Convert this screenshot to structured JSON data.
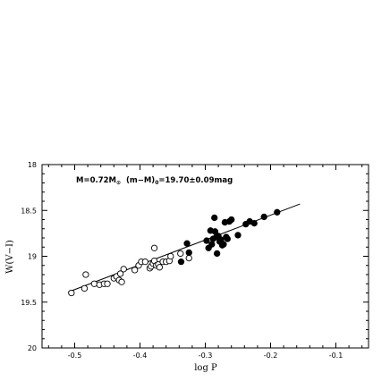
{
  "chart_data": {
    "type": "scatter",
    "xlabel": "log P",
    "ylabel": "W(V−I)",
    "xlim": [
      -0.55,
      -0.05
    ],
    "ylim": [
      20,
      18
    ],
    "y_inverted": true,
    "xticks": [
      -0.5,
      -0.4,
      -0.3,
      -0.2,
      -0.1
    ],
    "xtick_labels": [
      "-0.5",
      "-0.4",
      "-0.3",
      "-0.2",
      "-0.1"
    ],
    "yticks": [
      18,
      18.5,
      19,
      19.5,
      20
    ],
    "ytick_labels": [
      "18",
      "18.5",
      "19",
      "19.5",
      "20"
    ],
    "annotation": {
      "prefix": "M=0.72M",
      "prefix_sub": "⊙",
      "mid": "  (m−M)",
      "mid_sub": "0",
      "suffix": "=19.70±0.09mag"
    },
    "fit_line": {
      "x": [
        -0.51,
        -0.155
      ],
      "y": [
        19.39,
        18.43
      ]
    },
    "series": [
      {
        "marker": "open-circle",
        "x": [
          -0.505,
          -0.485,
          -0.483,
          -0.47,
          -0.462,
          -0.455,
          -0.45,
          -0.44,
          -0.436,
          -0.432,
          -0.43,
          -0.428,
          -0.425,
          -0.408,
          -0.402,
          -0.398,
          -0.392,
          -0.385,
          -0.383,
          -0.38,
          -0.378,
          -0.378,
          -0.375,
          -0.372,
          -0.37,
          -0.365,
          -0.36,
          -0.355,
          -0.353,
          -0.338,
          -0.325
        ],
        "y": [
          19.4,
          19.35,
          19.2,
          19.3,
          19.31,
          19.3,
          19.3,
          19.24,
          19.22,
          19.26,
          19.19,
          19.28,
          19.14,
          19.15,
          19.1,
          19.06,
          19.06,
          19.13,
          19.11,
          19.08,
          19.05,
          18.91,
          19.1,
          19.09,
          19.12,
          19.06,
          19.06,
          19.05,
          19.0,
          18.97,
          19.02
        ]
      },
      {
        "marker": "filled-circle",
        "x": [
          -0.337,
          -0.328,
          -0.325,
          -0.298,
          -0.295,
          -0.292,
          -0.29,
          -0.288,
          -0.286,
          -0.285,
          -0.283,
          -0.282,
          -0.28,
          -0.278,
          -0.276,
          -0.274,
          -0.272,
          -0.27,
          -0.268,
          -0.266,
          -0.263,
          -0.26,
          -0.25,
          -0.238,
          -0.232,
          -0.225,
          -0.21,
          -0.19
        ],
        "y": [
          19.06,
          18.86,
          18.96,
          18.83,
          18.91,
          18.72,
          18.87,
          18.81,
          18.58,
          18.73,
          18.79,
          18.97,
          18.78,
          18.84,
          18.82,
          18.88,
          18.87,
          18.63,
          18.79,
          18.81,
          18.62,
          18.6,
          18.77,
          18.65,
          18.62,
          18.64,
          18.57,
          18.52
        ]
      }
    ]
  }
}
